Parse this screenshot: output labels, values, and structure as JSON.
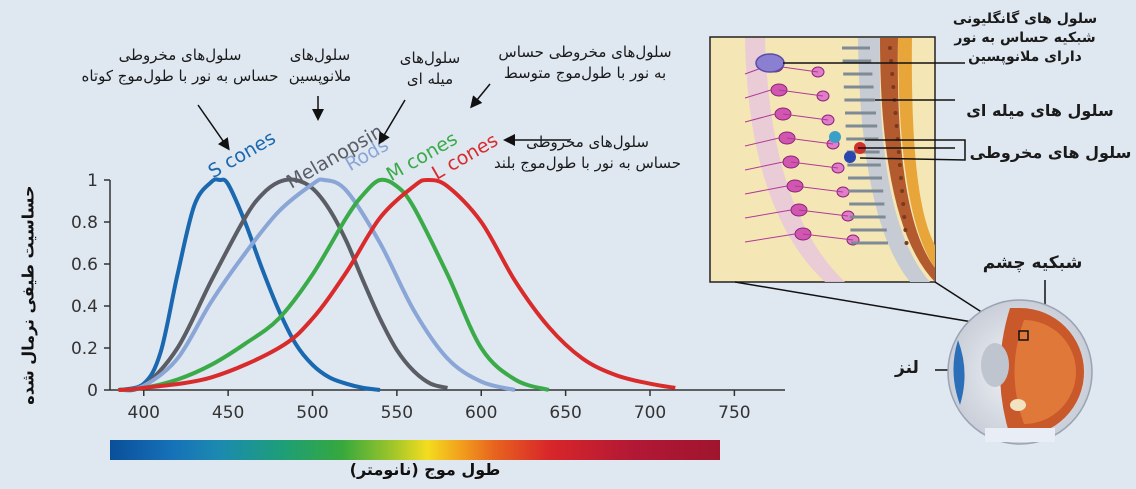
{
  "chart_data": {
    "type": "line",
    "ylabel": "حساسیت طیفی نرمال شده",
    "xlabel": "طول موج (نانومتر)",
    "x_ticks": [
      400,
      450,
      500,
      550,
      600,
      650,
      700,
      750
    ],
    "y_ticks": [
      "0",
      "0.2",
      "0.4",
      "0.6",
      "0.8",
      "1"
    ],
    "xlim": [
      380,
      780
    ],
    "ylim": [
      0,
      1.05
    ],
    "series": [
      {
        "name": "S cones",
        "color": "#1a68b0",
        "peak_nm": 445,
        "x": [
          400,
          410,
          420,
          430,
          440,
          445,
          450,
          460,
          470,
          480,
          490,
          500,
          510,
          520,
          530,
          540
        ],
        "y": [
          0.03,
          0.18,
          0.55,
          0.88,
          0.99,
          1.0,
          0.98,
          0.8,
          0.58,
          0.38,
          0.22,
          0.12,
          0.06,
          0.03,
          0.01,
          0.0
        ]
      },
      {
        "name": "Melanopsin",
        "color": "#5a5d63",
        "peak_nm": 490,
        "x": [
          400,
          420,
          440,
          460,
          470,
          480,
          490,
          500,
          510,
          520,
          530,
          540,
          550,
          560,
          570,
          580
        ],
        "y": [
          0.02,
          0.2,
          0.52,
          0.82,
          0.93,
          0.99,
          1.0,
          0.96,
          0.86,
          0.71,
          0.52,
          0.34,
          0.19,
          0.09,
          0.03,
          0.01
        ]
      },
      {
        "name": "Rods",
        "color": "#8aa6d6",
        "peak_nm": 507,
        "x": [
          400,
          420,
          440,
          460,
          480,
          500,
          507,
          520,
          540,
          560,
          580,
          600,
          620
        ],
        "y": [
          0.02,
          0.15,
          0.42,
          0.65,
          0.85,
          0.98,
          1.0,
          0.95,
          0.7,
          0.38,
          0.15,
          0.04,
          0.0
        ]
      },
      {
        "name": "M cones",
        "color": "#3aab48",
        "peak_nm": 540,
        "x": [
          400,
          420,
          440,
          460,
          480,
          500,
          520,
          530,
          540,
          550,
          560,
          580,
          600,
          620,
          640
        ],
        "y": [
          0.01,
          0.05,
          0.12,
          0.22,
          0.34,
          0.55,
          0.82,
          0.93,
          1.0,
          0.97,
          0.87,
          0.55,
          0.2,
          0.05,
          0.0
        ]
      },
      {
        "name": "L cones",
        "color": "#d92b2b",
        "peak_nm": 568,
        "x": [
          400,
          440,
          480,
          500,
          520,
          540,
          560,
          568,
          580,
          600,
          620,
          640,
          660,
          680,
          700,
          715
        ],
        "y": [
          0.01,
          0.06,
          0.2,
          0.34,
          0.56,
          0.82,
          0.97,
          1.0,
          0.97,
          0.8,
          0.52,
          0.3,
          0.15,
          0.07,
          0.03,
          0.01
        ]
      }
    ]
  },
  "annotations": {
    "s_cones": [
      "سلول‌های مخروطی",
      "حساس به نور با طول‌موج کوتاه"
    ],
    "melanopsin": [
      "سلول‌های",
      "ملانوپسین"
    ],
    "rods": [
      "سلول‌های",
      "میله ای"
    ],
    "m_cones": [
      "سلول‌های مخروطی حساس",
      "به نور با طول‌موج متوسط"
    ],
    "l_cones": [
      "سلول‌های مخروطی",
      "حساس به نور با طول‌موج بلند"
    ]
  },
  "retina": {
    "ganglion": [
      "سلول های گانگلیونی",
      "شبکیه حساس به نور",
      "دارای ملانوپسین"
    ],
    "rods": "سلول های میله ای",
    "cones": "سلول های مخروطی",
    "retina": "شبکیه چشم",
    "lens": "لنز"
  },
  "colors": {
    "background": "#dfe7f1",
    "axis": "#333333",
    "retina_bg": "#f4e7b5"
  }
}
